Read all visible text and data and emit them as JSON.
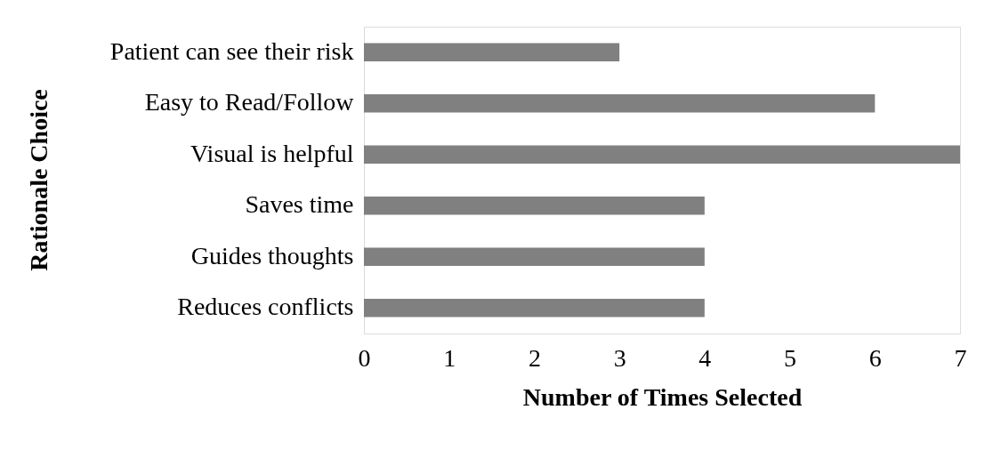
{
  "chart_data": {
    "type": "bar",
    "orientation": "horizontal",
    "xlabel": "Number of Times Selected",
    "ylabel": "Rationale Choice",
    "categories": [
      "Patient can see their risk",
      "Easy to Read/Follow",
      "Visual is helpful",
      "Saves time",
      "Guides thoughts",
      "Reduces conflicts"
    ],
    "values": [
      3,
      6,
      7,
      4,
      4,
      4
    ],
    "color": "#808080",
    "xlim": [
      0,
      7
    ],
    "xticks": [
      0,
      1,
      2,
      3,
      4,
      5,
      6,
      7
    ],
    "grid": false
  }
}
